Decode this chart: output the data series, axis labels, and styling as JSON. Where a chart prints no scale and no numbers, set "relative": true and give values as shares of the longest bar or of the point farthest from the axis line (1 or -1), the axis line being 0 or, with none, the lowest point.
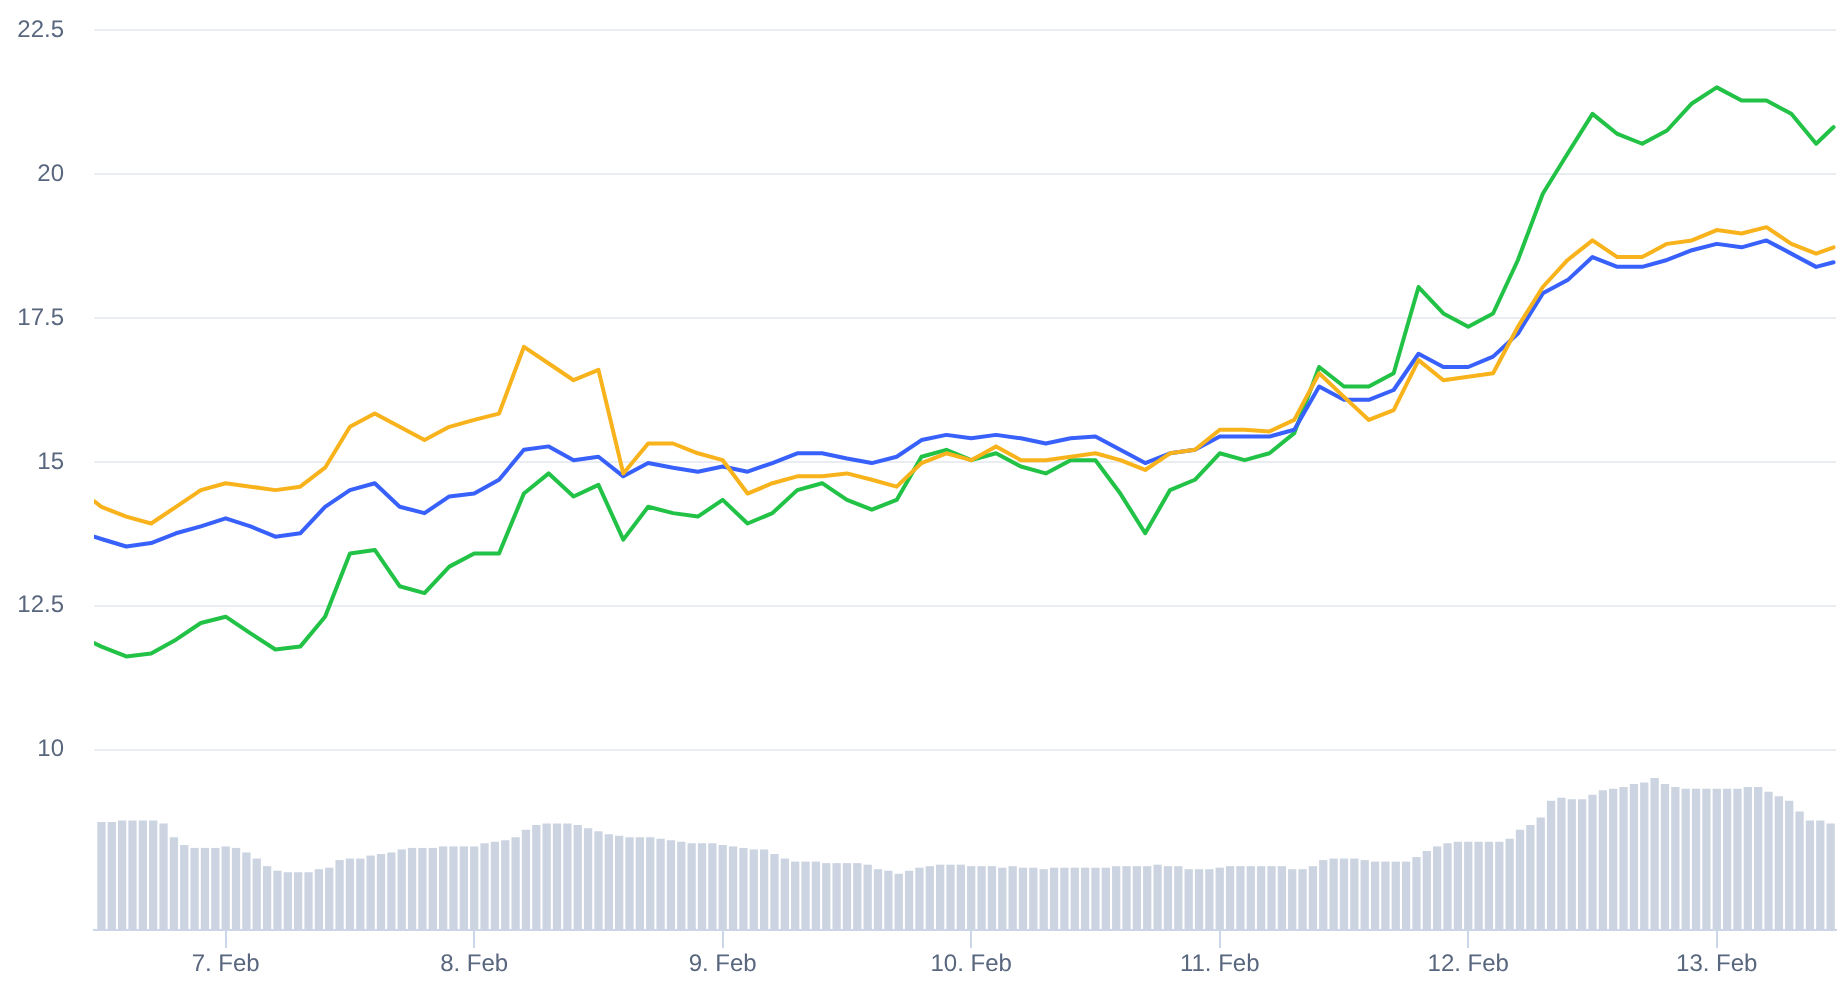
{
  "chart_data": [
    {
      "type": "line",
      "x": [
        "--02-06T11:17",
        "--02-06T12:00",
        "--02-06T14:24",
        "--02-06T16:48",
        "--02-06T19:12",
        "--02-06T21:36",
        "--02-07T00:00",
        "--02-07T02:24",
        "--02-07T04:48",
        "--02-07T07:12",
        "--02-07T09:36",
        "--02-07T12:00",
        "--02-07T14:24",
        "--02-07T16:48",
        "--02-07T19:12",
        "--02-07T21:36",
        "--02-08T00:00",
        "--02-08T02:24",
        "--02-08T04:48",
        "--02-08T07:12",
        "--02-08T09:36",
        "--02-08T12:00",
        "--02-08T14:24",
        "--02-08T16:48",
        "--02-08T19:12",
        "--02-08T21:36",
        "--02-09T00:00",
        "--02-09T02:24",
        "--02-09T04:48",
        "--02-09T07:12",
        "--02-09T09:36",
        "--02-09T12:00",
        "--02-09T14:24",
        "--02-09T16:48",
        "--02-09T19:12",
        "--02-09T21:36",
        "--02-10T00:00",
        "--02-10T02:24",
        "--02-10T04:48",
        "--02-10T07:12",
        "--02-10T09:36",
        "--02-10T12:00",
        "--02-10T14:24",
        "--02-10T16:48",
        "--02-10T19:12",
        "--02-10T21:36",
        "--02-11T00:00",
        "--02-11T02:24",
        "--02-11T04:48",
        "--02-11T07:12",
        "--02-11T09:36",
        "--02-11T12:00",
        "--02-11T14:24",
        "--02-11T16:48",
        "--02-11T19:12",
        "--02-11T21:36",
        "--02-12T00:00",
        "--02-12T02:24",
        "--02-12T04:48",
        "--02-12T07:12",
        "--02-12T09:36",
        "--02-12T12:00",
        "--02-12T14:24",
        "--02-12T16:48",
        "--02-12T19:12",
        "--02-12T21:36",
        "--02-13T00:00",
        "--02-13T02:24",
        "--02-13T04:48",
        "--02-13T07:12",
        "--02-13T09:36",
        "--02-13T11:17"
      ],
      "series": [
        {
          "color": "#f8b31c",
          "values": [
            14.32,
            14.22,
            14.05,
            13.93,
            14.22,
            14.51,
            14.63,
            14.57,
            14.51,
            14.57,
            14.9,
            15.61,
            15.84,
            15.61,
            15.38,
            15.61,
            15.73,
            15.84,
            17.0,
            16.71,
            16.42,
            16.6,
            14.8,
            15.32,
            15.32,
            15.15,
            15.03,
            14.45,
            14.63,
            14.75,
            14.75,
            14.8,
            14.69,
            14.57,
            14.98,
            15.15,
            15.03,
            15.27,
            15.03,
            15.03,
            15.09,
            15.15,
            15.03,
            14.86,
            15.15,
            15.21,
            15.56,
            15.56,
            15.53,
            15.73,
            16.54,
            16.13,
            15.73,
            15.9,
            16.77,
            16.42,
            16.48,
            16.54,
            17.35,
            18.04,
            18.51,
            18.85,
            18.56,
            18.56,
            18.79,
            18.85,
            19.03,
            18.97,
            19.08,
            18.79,
            18.62,
            18.73
          ]
        },
        {
          "color": "#3861fb",
          "values": [
            13.7,
            13.66,
            13.53,
            13.59,
            13.76,
            13.88,
            14.02,
            13.88,
            13.7,
            13.76,
            14.22,
            14.51,
            14.63,
            14.22,
            14.11,
            14.4,
            14.45,
            14.69,
            15.21,
            15.27,
            15.03,
            15.09,
            14.75,
            14.98,
            14.9,
            14.83,
            14.92,
            14.83,
            14.98,
            15.15,
            15.15,
            15.06,
            14.98,
            15.09,
            15.38,
            15.47,
            15.41,
            15.47,
            15.41,
            15.32,
            15.41,
            15.44,
            15.21,
            14.98,
            15.15,
            15.21,
            15.44,
            15.44,
            15.44,
            15.56,
            16.31,
            16.08,
            16.08,
            16.25,
            16.88,
            16.65,
            16.65,
            16.83,
            17.23,
            17.93,
            18.16,
            18.56,
            18.39,
            18.39,
            18.51,
            18.68,
            18.79,
            18.73,
            18.85,
            18.62,
            18.39,
            18.47
          ]
        },
        {
          "color": "#21c246",
          "values": [
            11.85,
            11.79,
            11.62,
            11.67,
            11.91,
            12.2,
            12.31,
            12.02,
            11.74,
            11.79,
            12.31,
            13.41,
            13.47,
            12.84,
            12.72,
            13.18,
            13.41,
            13.41,
            14.45,
            14.8,
            14.4,
            14.6,
            13.65,
            14.22,
            14.11,
            14.05,
            14.34,
            13.93,
            14.11,
            14.51,
            14.63,
            14.34,
            14.17,
            14.34,
            15.09,
            15.21,
            15.03,
            15.15,
            14.92,
            14.8,
            15.03,
            15.03,
            14.45,
            13.76,
            14.51,
            14.69,
            15.15,
            15.03,
            15.15,
            15.5,
            16.65,
            16.31,
            16.31,
            16.54,
            18.04,
            17.58,
            17.35,
            17.58,
            18.51,
            19.66,
            20.36,
            21.05,
            20.7,
            20.53,
            20.76,
            21.23,
            21.51,
            21.28,
            21.28,
            21.05,
            20.53,
            20.82
          ]
        }
      ],
      "xlim": [
        "--02-06T11:17",
        "--02-13T11:31"
      ],
      "ylim": [
        10,
        22.5
      ],
      "yticks": [
        10,
        12.5,
        15,
        17.5,
        20,
        22.5
      ],
      "grid": "y",
      "tick_labels": "y",
      "marker": "none"
    },
    {
      "type": "bar",
      "relative": true,
      "color": "#ccd4e2",
      "x": [
        "--02-06T12:00",
        "--02-06T13:00",
        "--02-06T14:00",
        "--02-06T15:00",
        "--02-06T16:00",
        "--02-06T17:00",
        "--02-06T18:00",
        "--02-06T19:00",
        "--02-06T20:00",
        "--02-06T21:00",
        "--02-06T22:00",
        "--02-06T23:00",
        "--02-07T00:00",
        "--02-07T01:00",
        "--02-07T02:00",
        "--02-07T03:00",
        "--02-07T04:00",
        "--02-07T05:00",
        "--02-07T06:00",
        "--02-07T07:00",
        "--02-07T08:00",
        "--02-07T09:00",
        "--02-07T10:00",
        "--02-07T11:00",
        "--02-07T12:00",
        "--02-07T13:00",
        "--02-07T14:00",
        "--02-07T15:00",
        "--02-07T16:00",
        "--02-07T17:00",
        "--02-07T18:00",
        "--02-07T19:00",
        "--02-07T20:00",
        "--02-07T21:00",
        "--02-07T22:00",
        "--02-07T23:00",
        "--02-08T00:00",
        "--02-08T01:00",
        "--02-08T02:00",
        "--02-08T03:00",
        "--02-08T04:00",
        "--02-08T05:00",
        "--02-08T06:00",
        "--02-08T07:00",
        "--02-08T08:00",
        "--02-08T09:00",
        "--02-08T10:00",
        "--02-08T11:00",
        "--02-08T12:00",
        "--02-08T13:00",
        "--02-08T14:00",
        "--02-08T15:00",
        "--02-08T16:00",
        "--02-08T17:00",
        "--02-08T18:00",
        "--02-08T19:00",
        "--02-08T20:00",
        "--02-08T21:00",
        "--02-08T22:00",
        "--02-08T23:00",
        "--02-09T00:00",
        "--02-09T01:00",
        "--02-09T02:00",
        "--02-09T03:00",
        "--02-09T04:00",
        "--02-09T05:00",
        "--02-09T06:00",
        "--02-09T07:00",
        "--02-09T08:00",
        "--02-09T09:00",
        "--02-09T10:00",
        "--02-09T11:00",
        "--02-09T12:00",
        "--02-09T13:00",
        "--02-09T14:00",
        "--02-09T15:00",
        "--02-09T16:00",
        "--02-09T17:00",
        "--02-09T18:00",
        "--02-09T19:00",
        "--02-09T20:00",
        "--02-09T21:00",
        "--02-09T22:00",
        "--02-09T23:00",
        "--02-10T00:00",
        "--02-10T01:00",
        "--02-10T02:00",
        "--02-10T03:00",
        "--02-10T04:00",
        "--02-10T05:00",
        "--02-10T06:00",
        "--02-10T07:00",
        "--02-10T08:00",
        "--02-10T09:00",
        "--02-10T10:00",
        "--02-10T11:00",
        "--02-10T12:00",
        "--02-10T13:00",
        "--02-10T14:00",
        "--02-10T15:00",
        "--02-10T16:00",
        "--02-10T17:00",
        "--02-10T18:00",
        "--02-10T19:00",
        "--02-10T20:00",
        "--02-10T21:00",
        "--02-10T22:00",
        "--02-10T23:00",
        "--02-11T00:00",
        "--02-11T01:00",
        "--02-11T02:00",
        "--02-11T03:00",
        "--02-11T04:00",
        "--02-11T05:00",
        "--02-11T06:00",
        "--02-11T07:00",
        "--02-11T08:00",
        "--02-11T09:00",
        "--02-11T10:00",
        "--02-11T11:00",
        "--02-11T12:00",
        "--02-11T13:00",
        "--02-11T14:00",
        "--02-11T15:00",
        "--02-11T16:00",
        "--02-11T17:00",
        "--02-11T18:00",
        "--02-11T19:00",
        "--02-11T20:00",
        "--02-11T21:00",
        "--02-11T22:00",
        "--02-11T23:00",
        "--02-12T00:00",
        "--02-12T01:00",
        "--02-12T02:00",
        "--02-12T03:00",
        "--02-12T04:00",
        "--02-12T05:00",
        "--02-12T06:00",
        "--02-12T07:00",
        "--02-12T08:00",
        "--02-12T09:00",
        "--02-12T10:00",
        "--02-12T11:00",
        "--02-12T12:00",
        "--02-12T13:00",
        "--02-12T14:00",
        "--02-12T15:00",
        "--02-12T16:00",
        "--02-12T17:00",
        "--02-12T18:00",
        "--02-12T19:00",
        "--02-12T20:00",
        "--02-12T21:00",
        "--02-12T22:00",
        "--02-12T23:00",
        "--02-13T00:00",
        "--02-13T01:00",
        "--02-13T02:00",
        "--02-13T03:00",
        "--02-13T04:00",
        "--02-13T05:00",
        "--02-13T06:00",
        "--02-13T07:00",
        "--02-13T08:00",
        "--02-13T09:00",
        "--02-13T10:00",
        "--02-13T11:00"
      ],
      "values": [
        0.71,
        0.71,
        0.72,
        0.72,
        0.72,
        0.72,
        0.7,
        0.61,
        0.56,
        0.54,
        0.54,
        0.54,
        0.55,
        0.54,
        0.51,
        0.47,
        0.42,
        0.39,
        0.38,
        0.38,
        0.38,
        0.4,
        0.41,
        0.46,
        0.47,
        0.47,
        0.49,
        0.5,
        0.51,
        0.53,
        0.54,
        0.54,
        0.54,
        0.55,
        0.55,
        0.55,
        0.55,
        0.57,
        0.58,
        0.59,
        0.61,
        0.66,
        0.69,
        0.7,
        0.7,
        0.7,
        0.69,
        0.67,
        0.65,
        0.63,
        0.62,
        0.61,
        0.61,
        0.61,
        0.6,
        0.59,
        0.58,
        0.57,
        0.57,
        0.57,
        0.56,
        0.55,
        0.54,
        0.53,
        0.53,
        0.5,
        0.47,
        0.45,
        0.45,
        0.45,
        0.44,
        0.44,
        0.44,
        0.44,
        0.43,
        0.4,
        0.39,
        0.37,
        0.39,
        0.41,
        0.42,
        0.43,
        0.43,
        0.43,
        0.42,
        0.42,
        0.42,
        0.41,
        0.42,
        0.41,
        0.41,
        0.4,
        0.41,
        0.41,
        0.41,
        0.41,
        0.41,
        0.41,
        0.42,
        0.42,
        0.42,
        0.42,
        0.43,
        0.42,
        0.42,
        0.4,
        0.4,
        0.4,
        0.41,
        0.42,
        0.42,
        0.42,
        0.42,
        0.42,
        0.42,
        0.4,
        0.4,
        0.42,
        0.46,
        0.47,
        0.47,
        0.47,
        0.46,
        0.45,
        0.45,
        0.45,
        0.45,
        0.48,
        0.52,
        0.55,
        0.57,
        0.58,
        0.58,
        0.58,
        0.58,
        0.58,
        0.6,
        0.66,
        0.69,
        0.74,
        0.85,
        0.87,
        0.86,
        0.86,
        0.89,
        0.92,
        0.93,
        0.94,
        0.96,
        0.97,
        1,
        0.96,
        0.94,
        0.93,
        0.93,
        0.93,
        0.93,
        0.93,
        0.93,
        0.94,
        0.94,
        0.91,
        0.88,
        0.85,
        0.78,
        0.72,
        0.72,
        0.7
      ],
      "xlim": [
        "--02-06T11:17",
        "--02-13T11:31"
      ],
      "xticks": [
        {
          "value": "--02-07",
          "label": "7. Feb"
        },
        {
          "value": "--02-08",
          "label": "8. Feb"
        },
        {
          "value": "--02-09",
          "label": "9. Feb"
        },
        {
          "value": "--02-10",
          "label": "10. Feb"
        },
        {
          "value": "--02-11",
          "label": "11. Feb"
        },
        {
          "value": "--02-12",
          "label": "12. Feb"
        },
        {
          "value": "--02-13",
          "label": "13. Feb"
        }
      ]
    }
  ]
}
